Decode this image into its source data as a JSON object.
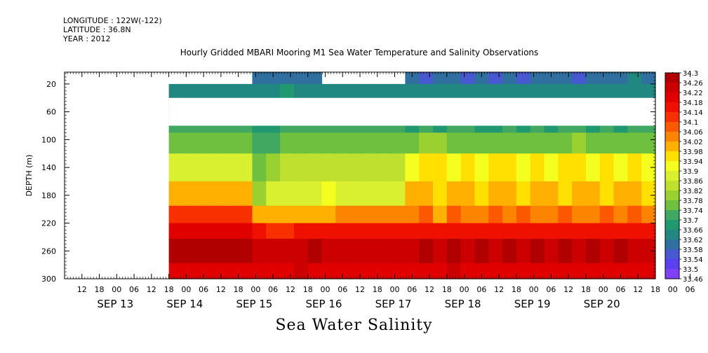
{
  "header": {
    "longitude": "LONGITUDE : 122W(-122)",
    "latitude": "LATITUDE : 36.8N",
    "year": "YEAR : 2012"
  },
  "chart_data": {
    "type": "heatmap",
    "title": "Hourly Gridded MBARI Mooring M1 Sea Water Temperature and Salinity Observations",
    "footer_label": "Sea Water Salinity",
    "ylabel": "DEPTH (m)",
    "y_ticks": [
      20,
      60,
      100,
      140,
      180,
      220,
      260,
      300
    ],
    "ylim": [
      3,
      300
    ],
    "y_inverted": true,
    "x_start": "2012-09-12T06:00",
    "x_end": "2012-09-20T18:00",
    "x_hour_ticks": [
      "12",
      "18",
      "00",
      "06",
      "12",
      "18",
      "00",
      "06",
      "12",
      "18",
      "00",
      "06",
      "12",
      "18",
      "00",
      "06",
      "12",
      "18",
      "00",
      "06",
      "12",
      "18",
      "00",
      "06",
      "12",
      "18",
      "00",
      "06",
      "12",
      "18",
      "00",
      "06",
      "12",
      "18",
      "00",
      "06"
    ],
    "x_day_labels": [
      "SEP 13",
      "SEP 14",
      "SEP 15",
      "SEP 16",
      "SEP 17",
      "SEP 18",
      "SEP 19",
      "SEP 20"
    ],
    "data_start": "2012-09-13T18:00",
    "surface_gaps": [
      {
        "from": "2012-09-13T18:00",
        "to": "2012-09-15T00:00"
      },
      {
        "from": "2012-09-16T06:00",
        "to": "2012-09-17T06:00"
      }
    ],
    "depth_rows": [
      {
        "depth": 10,
        "values": [
          null,
          null,
          null,
          null,
          null,
          null,
          33.6,
          33.58,
          33.58,
          33.6,
          33.58,
          null,
          null,
          null,
          null,
          null,
          null,
          33.58,
          33.56,
          33.58,
          33.58,
          33.56,
          33.58,
          33.56,
          33.58,
          33.56,
          33.58,
          33.6,
          33.58,
          33.56,
          33.58,
          33.6,
          33.58,
          33.62,
          33.6
        ]
      },
      {
        "depth": 30,
        "values": [
          33.64,
          33.64,
          33.64,
          33.64,
          33.64,
          33.64,
          33.64,
          33.64,
          33.66,
          33.64,
          33.64,
          33.64,
          33.64,
          33.64,
          33.64,
          33.64,
          33.64,
          33.64,
          33.64,
          33.64,
          33.64,
          33.64,
          33.64,
          33.64,
          33.64,
          33.64,
          33.64,
          33.64,
          33.64,
          33.64,
          33.64,
          33.64,
          33.64,
          33.64,
          33.64
        ]
      },
      {
        "depth": 80,
        "values": [
          33.7,
          33.7,
          33.7,
          33.7,
          33.7,
          33.7,
          33.68,
          33.68,
          33.7,
          33.7,
          33.7,
          33.7,
          33.7,
          33.7,
          33.7,
          33.7,
          33.7,
          33.68,
          33.7,
          33.68,
          33.7,
          33.7,
          33.68,
          33.68,
          33.7,
          33.68,
          33.7,
          33.68,
          33.7,
          33.7,
          33.68,
          33.7,
          33.68,
          33.7,
          33.7
        ]
      },
      {
        "depth": 100,
        "values": [
          33.74,
          33.74,
          33.74,
          33.74,
          33.74,
          33.74,
          33.72,
          33.72,
          33.74,
          33.74,
          33.74,
          33.74,
          33.74,
          33.74,
          33.74,
          33.74,
          33.74,
          33.76,
          33.78,
          33.78,
          33.76,
          33.76,
          33.76,
          33.74,
          33.76,
          33.76,
          33.76,
          33.74,
          33.76,
          33.78,
          33.76,
          33.76,
          33.74,
          33.76,
          33.74
        ]
      },
      {
        "depth": 140,
        "values": [
          33.86,
          33.86,
          33.86,
          33.86,
          33.86,
          33.86,
          33.76,
          33.8,
          33.82,
          33.82,
          33.82,
          33.82,
          33.82,
          33.82,
          33.82,
          33.82,
          33.82,
          33.9,
          33.94,
          33.96,
          33.92,
          33.94,
          33.9,
          33.94,
          33.96,
          33.92,
          33.94,
          33.92,
          33.94,
          33.96,
          33.92,
          33.96,
          33.92,
          33.94,
          33.92
        ]
      },
      {
        "depth": 180,
        "values": [
          33.98,
          33.98,
          33.98,
          33.98,
          33.98,
          33.98,
          33.8,
          33.86,
          33.88,
          33.88,
          33.88,
          33.9,
          33.88,
          33.88,
          33.88,
          33.88,
          33.88,
          33.98,
          34.0,
          33.96,
          33.98,
          34.0,
          33.94,
          34.0,
          33.98,
          33.96,
          34.0,
          33.98,
          33.96,
          34.0,
          33.98,
          33.96,
          34.0,
          33.98,
          33.96
        ]
      },
      {
        "depth": 210,
        "values": [
          34.12,
          34.12,
          34.12,
          34.12,
          34.12,
          34.12,
          34.0,
          34.0,
          33.98,
          34.0,
          33.98,
          34.0,
          34.02,
          34.02,
          34.02,
          34.02,
          34.02,
          34.04,
          34.06,
          34.0,
          34.06,
          34.02,
          34.04,
          34.06,
          34.02,
          34.06,
          34.04,
          34.02,
          34.06,
          34.04,
          34.02,
          34.06,
          34.04,
          34.06,
          34.02
        ]
      },
      {
        "depth": 230,
        "values": [
          34.18,
          34.18,
          34.18,
          34.18,
          34.18,
          34.18,
          34.16,
          34.12,
          34.12,
          34.14,
          34.14,
          34.14,
          34.14,
          34.14,
          34.14,
          34.14,
          34.14,
          34.16,
          34.14,
          34.14,
          34.16,
          34.16,
          34.14,
          34.16,
          34.16,
          34.14,
          34.16,
          34.16,
          34.14,
          34.16,
          34.16,
          34.14,
          34.16,
          34.14,
          34.14
        ]
      },
      {
        "depth": 255,
        "values": [
          34.26,
          34.26,
          34.26,
          34.26,
          34.26,
          34.26,
          34.22,
          34.22,
          34.24,
          34.24,
          34.26,
          34.22,
          34.22,
          34.22,
          34.22,
          34.24,
          34.22,
          34.24,
          34.26,
          34.24,
          34.26,
          34.24,
          34.26,
          34.24,
          34.26,
          34.24,
          34.26,
          34.24,
          34.26,
          34.24,
          34.26,
          34.24,
          34.26,
          34.24,
          34.24
        ]
      },
      {
        "depth": 300,
        "values": [
          34.2,
          34.2,
          34.2,
          34.2,
          34.2,
          34.2,
          34.2,
          34.2,
          34.2,
          34.22,
          34.2,
          34.2,
          34.2,
          34.2,
          34.2,
          34.2,
          34.2,
          34.2,
          34.2,
          34.2,
          34.22,
          34.2,
          34.2,
          34.2,
          34.2,
          34.2,
          34.2,
          34.2,
          34.2,
          34.2,
          34.2,
          34.2,
          34.2,
          34.2,
          34.2
        ]
      }
    ],
    "missing_depth_band": [
      40,
      80
    ],
    "colorbar": {
      "labels": [
        "34.3",
        "34.26",
        "34.22",
        "34.18",
        "34.14",
        "34.1",
        "34.06",
        "34.02",
        "33.98",
        "33.94",
        "33.9",
        "33.86",
        "33.82",
        "33.78",
        "33.74",
        "33.7",
        "33.66",
        "33.62",
        "33.58",
        "33.54",
        "33.5",
        "33.46"
      ],
      "colors": [
        "#b00000",
        "#cc0000",
        "#e00000",
        "#f01000",
        "#f83000",
        "#fc5800",
        "#fd8400",
        "#ffb000",
        "#ffe000",
        "#f4ff20",
        "#d8f030",
        "#c0e030",
        "#9ad030",
        "#70c040",
        "#40a860",
        "#209870",
        "#208880",
        "#3070a0",
        "#4858d0",
        "#5a40f0",
        "#8040f8",
        "#c020ff"
      ]
    }
  }
}
